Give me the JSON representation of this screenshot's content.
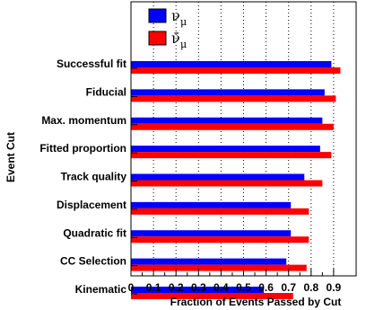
{
  "chart_data": {
    "type": "bar",
    "orientation": "horizontal",
    "title": "",
    "xlabel": "Fraction of Events Passed by Cut",
    "ylabel": "Event Cut",
    "xlim": [
      0,
      1
    ],
    "xticks": [
      0,
      0.1,
      0.2,
      0.3,
      0.4,
      0.5,
      0.6,
      0.7,
      0.8,
      0.9
    ],
    "xtick_labels": [
      "0",
      "0.1",
      "0.2",
      "0.3",
      "0.4",
      "0.5",
      "0.6",
      "0.7",
      "0.8",
      "0.9"
    ],
    "grid": "vertical dotted",
    "legend_position": "top-left",
    "categories": [
      "Successful fit",
      "Fiducial",
      "Max. momentum",
      "Fitted proportion",
      "Track quality",
      "Displacement",
      "Quadratic fit",
      "CC Selection",
      "Kinematic"
    ],
    "series": [
      {
        "name": "ν_μ",
        "legend_main": "ν",
        "legend_sub": "μ",
        "color": "#0000ff",
        "values": [
          0.89,
          0.86,
          0.85,
          0.84,
          0.77,
          0.71,
          0.71,
          0.69,
          0.59
        ]
      },
      {
        "name": "ν̄_μ",
        "legend_main": "ν̄",
        "legend_sub": "μ",
        "color": "#ff0000",
        "values": [
          0.93,
          0.91,
          0.9,
          0.89,
          0.85,
          0.79,
          0.79,
          0.78,
          0.72
        ]
      }
    ]
  }
}
